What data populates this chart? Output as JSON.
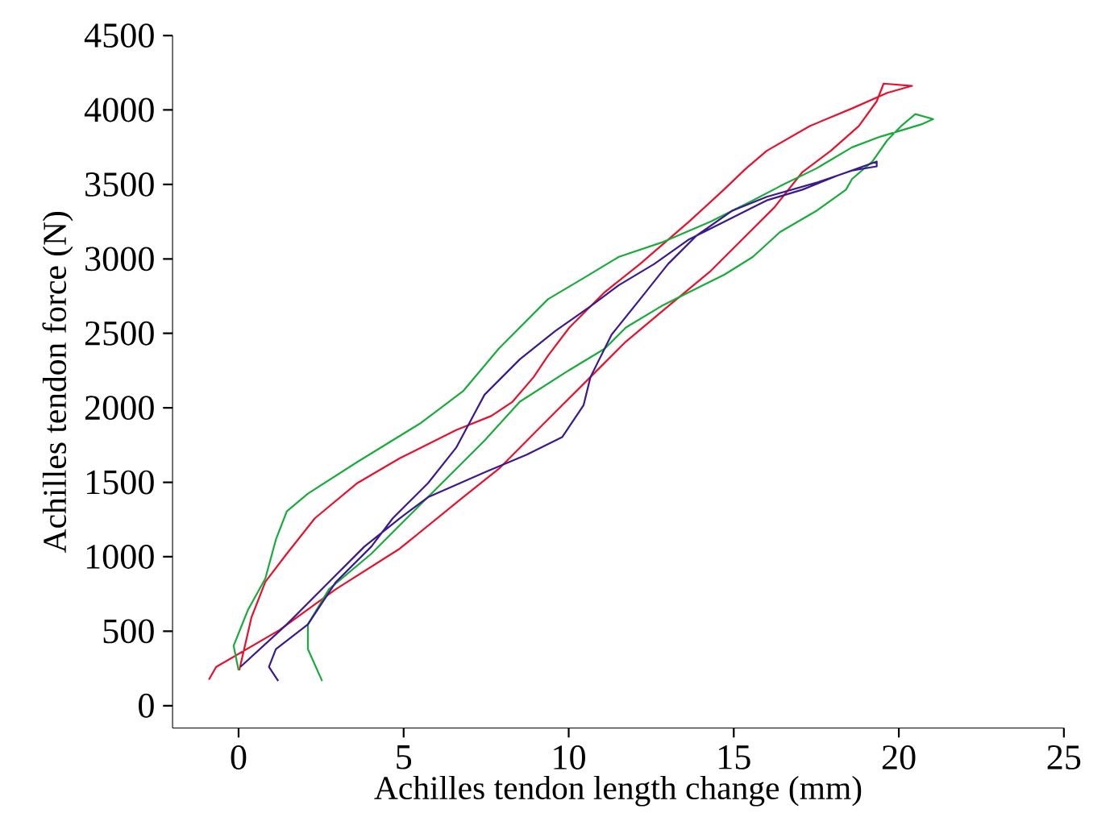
{
  "chart_data": {
    "type": "line",
    "xlabel": "Achilles tendon length change (mm)",
    "ylabel": "Achilles tendon force (N)",
    "xlim": [
      -2,
      25
    ],
    "ylim": [
      -150,
      4500
    ],
    "xticks": [
      0,
      5,
      10,
      15,
      20,
      25
    ],
    "yticks": [
      0,
      500,
      1000,
      1500,
      2000,
      2500,
      3000,
      3500,
      4000,
      4500
    ],
    "grid": false,
    "marker": "none",
    "line_style": "solid",
    "series": [
      {
        "color": "#e8112d",
        "x": [
          -0.9,
          -0.68,
          1.24,
          2.95,
          4.88,
          6.8,
          7.88,
          9.16,
          10.66,
          11.73,
          13.01,
          14.3,
          15.37,
          16.23,
          17.08,
          17.94,
          18.79,
          19.33,
          19.54,
          20.4,
          19.65,
          18.58,
          17.3,
          16.0,
          15.37,
          14.7,
          13.65,
          12.16,
          11.09,
          10.02,
          9.37,
          8.94,
          8.3,
          7.66,
          6.59,
          4.88,
          3.6,
          2.31,
          1.46,
          0.81,
          0.39,
          0.02
        ],
        "values": [
          175,
          260,
          508,
          783,
          1054,
          1400,
          1590,
          1875,
          2207,
          2444,
          2682,
          2919,
          3156,
          3346,
          3583,
          3726,
          3892,
          4058,
          4177,
          4162,
          4115,
          4010,
          3892,
          3726,
          3607,
          3465,
          3251,
          2966,
          2777,
          2539,
          2349,
          2207,
          2041,
          1946,
          1851,
          1661,
          1495,
          1258,
          1020,
          831,
          593,
          237
        ]
      },
      {
        "color": "#1aab3c",
        "x": [
          2.53,
          2.1,
          2.1,
          2.74,
          4.02,
          5.09,
          6.16,
          7.45,
          8.52,
          10.02,
          11.09,
          11.73,
          12.8,
          13.65,
          14.72,
          15.58,
          16.4,
          17.5,
          18.4,
          18.58,
          19.2,
          19.65,
          20.07,
          20.5,
          21.04,
          20.72,
          19.44,
          18.58,
          17.5,
          16.4,
          15.58,
          14.3,
          12.8,
          11.52,
          10.45,
          9.37,
          7.88,
          6.8,
          5.52,
          3.6,
          2.1,
          1.46,
          1.13,
          0.81,
          0.28,
          -0.15,
          0
        ],
        "values": [
          166,
          380,
          546,
          783,
          1020,
          1258,
          1495,
          1780,
          2041,
          2254,
          2397,
          2539,
          2682,
          2777,
          2895,
          3014,
          3180,
          3322,
          3465,
          3536,
          3654,
          3797,
          3892,
          3972,
          3939,
          3906,
          3821,
          3749,
          3607,
          3488,
          3393,
          3251,
          3109,
          3014,
          2871,
          2729,
          2397,
          2112,
          1898,
          1637,
          1424,
          1305,
          1115,
          854,
          641,
          403,
          237
        ]
      },
      {
        "color": "#3a1a8c",
        "x": [
          1.2,
          0.92,
          1.13,
          2.1,
          2.95,
          4.02,
          4.67,
          5.74,
          6.59,
          7.45,
          8.52,
          9.59,
          10.66,
          11.52,
          12.59,
          13.65,
          14.94,
          16.0,
          17.08,
          18.15,
          19.33,
          19.33,
          18.58,
          17.51,
          16.0,
          14.94,
          13.87,
          13.01,
          12.16,
          11.3,
          10.66,
          10.45,
          9.8,
          8.73,
          7.45,
          5.74,
          4.88,
          3.81,
          2.74,
          1.46,
          0.06
        ],
        "values": [
          166,
          261,
          380,
          546,
          831,
          1068,
          1258,
          1495,
          1732,
          2088,
          2326,
          2515,
          2682,
          2824,
          2966,
          3132,
          3275,
          3393,
          3465,
          3560,
          3654,
          3621,
          3593,
          3512,
          3417,
          3322,
          3156,
          2966,
          2729,
          2492,
          2207,
          2017,
          1803,
          1685,
          1566,
          1400,
          1258,
          1068,
          831,
          546,
          261
        ]
      }
    ]
  }
}
